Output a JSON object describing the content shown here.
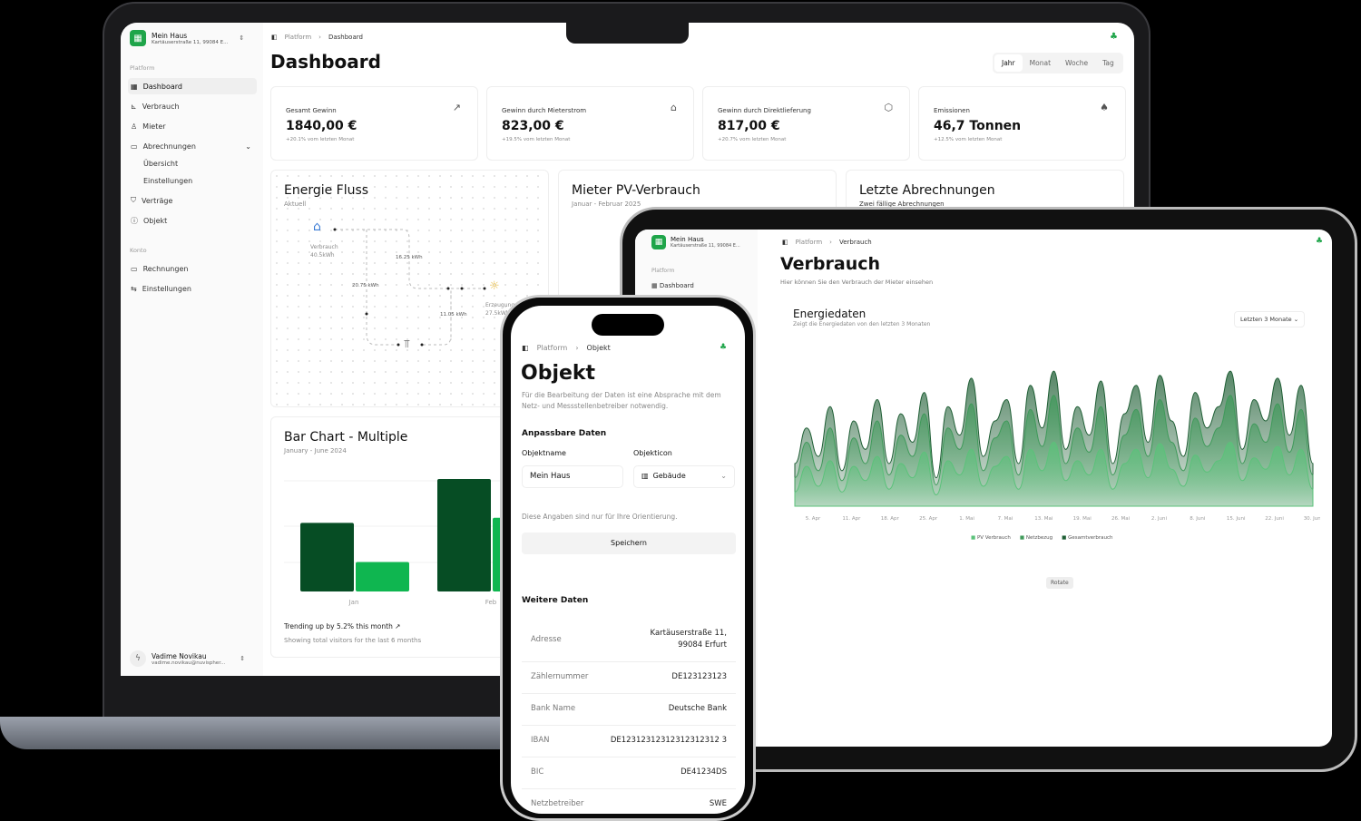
{
  "laptop": {
    "sidebar": {
      "org_name": "Mein Haus",
      "org_address": "Kartäuserstraße 11, 99084 E...",
      "section_platform": "Platform",
      "section_konto": "Konto",
      "items": [
        {
          "label": "Dashboard",
          "icon": "dashboard-icon"
        },
        {
          "label": "Verbrauch",
          "icon": "chart-icon"
        },
        {
          "label": "Mieter",
          "icon": "user-icon"
        },
        {
          "label": "Abrechnungen",
          "icon": "card-icon"
        },
        {
          "label": "Übersicht"
        },
        {
          "label": "Einstellungen"
        },
        {
          "label": "Verträge",
          "icon": "shield-icon"
        },
        {
          "label": "Objekt",
          "icon": "info-icon"
        }
      ],
      "konto_items": [
        {
          "label": "Rechnungen",
          "icon": "card-icon"
        },
        {
          "label": "Einstellungen",
          "icon": "sliders-icon"
        }
      ],
      "user_name": "Vadime Novikau",
      "user_email": "vadime.novikau@nuvispher..."
    },
    "breadcrumb": [
      "Platform",
      "Dashboard"
    ],
    "title": "Dashboard",
    "range_tabs": [
      "Jahr",
      "Monat",
      "Woche",
      "Tag"
    ],
    "active_range": "Jahr",
    "kpis": [
      {
        "label": "Gesamt Gewinn",
        "value": "1840,00 €",
        "sub": "+20.1% vom letzten Monat",
        "icon": "trending-up-icon"
      },
      {
        "label": "Gewinn durch Mieterstrom",
        "value": "823,00 €",
        "sub": "+19.5% vom letzten Monat",
        "icon": "house-icon"
      },
      {
        "label": "Gewinn durch Direktlieferung",
        "value": "817,00 €",
        "sub": "+20.7% vom letzten Monat",
        "icon": "package-icon"
      },
      {
        "label": "Emissionen",
        "value": "46,7 Tonnen",
        "sub": "+12.5% vom letzten Monat",
        "icon": "trees-icon"
      }
    ],
    "energy_flow": {
      "title": "Energie Fluss",
      "sub": "Aktuell",
      "consumption_label": "Verbrauch",
      "consumption_value": "40.5kWh",
      "production_label": "Erzeugung",
      "production_value": "27.5kWh",
      "flow1": "16.25 kWh",
      "flow2": "20.75 kWh",
      "flow3": "11.05 kWh"
    },
    "pv_card": {
      "title": "Mieter PV-Verbrauch",
      "sub": "Januar - Februar 2025"
    },
    "billing_card": {
      "title": "Letzte Abrechnungen",
      "sub": "Zwei fällige Abrechnungen"
    },
    "bar_chart": {
      "title": "Bar Chart - Multiple",
      "sub": "January - June 2024",
      "footer": "Trending up by 5.2% this month",
      "footer_sub": "Showing total visitors for the last 6 months",
      "chart_data": {
        "type": "bar",
        "categories": [
          "Jan",
          "Feb"
        ],
        "series": [
          {
            "values": [
              186,
              305
            ],
            "color": "#064d24"
          },
          {
            "values": [
              80,
              200
            ],
            "color": "#0fb650"
          }
        ]
      }
    }
  },
  "tablet": {
    "org_name": "Mein Haus",
    "org_address": "Kartäuserstraße 11, 99084 E...",
    "section_platform": "Platform",
    "nav_dashboard": "Dashboard",
    "breadcrumb": [
      "Platform",
      "Verbrauch"
    ],
    "title": "Verbrauch",
    "subtitle": "Hier können Sie den Verbrauch der Mieter einsehen",
    "chart_title": "Energiedaten",
    "chart_sub": "Zeigt die Energiedaten von den letzten 3 Monaten",
    "range_select": "Letzten 3 Monate",
    "rotate_button": "Rotate",
    "chart_data": {
      "type": "area",
      "x_ticks": [
        "5. Apr",
        "11. Apr",
        "18. Apr",
        "25. Apr",
        "1. Mai",
        "7. Mai",
        "13. Mai",
        "19. Mai",
        "26. Mai",
        "2. Juni",
        "8. Juni",
        "15. Juni",
        "22. Juni",
        "30. Juni"
      ],
      "series": [
        {
          "name": "Gesamtverbrauch",
          "color": "#1e5e34",
          "values": [
            30,
            55,
            35,
            70,
            25,
            60,
            40,
            75,
            30,
            65,
            45,
            80,
            20,
            70,
            50,
            90,
            35,
            60,
            75,
            30,
            85,
            55,
            95,
            40,
            70,
            50,
            88,
            30,
            65,
            85,
            45,
            92,
            60,
            35,
            80,
            55,
            70,
            95,
            40,
            75,
            60,
            90,
            50,
            85,
            30
          ]
        },
        {
          "name": "Netzbezug",
          "color": "#3f9a5a",
          "values": [
            20,
            45,
            25,
            55,
            18,
            48,
            30,
            60,
            22,
            50,
            35,
            65,
            15,
            55,
            40,
            72,
            25,
            48,
            60,
            22,
            68,
            42,
            78,
            30,
            55,
            38,
            70,
            22,
            50,
            68,
            35,
            75,
            45,
            25,
            62,
            42,
            55,
            78,
            30,
            58,
            45,
            72,
            38,
            68,
            22
          ]
        },
        {
          "name": "PV Verbrauch",
          "color": "#5bc27a",
          "values": [
            10,
            28,
            14,
            32,
            10,
            28,
            18,
            35,
            12,
            30,
            20,
            38,
            8,
            32,
            22,
            40,
            14,
            28,
            35,
            12,
            40,
            25,
            45,
            18,
            32,
            22,
            40,
            12,
            30,
            40,
            20,
            44,
            26,
            14,
            36,
            24,
            32,
            45,
            18,
            34,
            26,
            42,
            22,
            40,
            12
          ]
        }
      ],
      "legend": [
        "PV Verbrauch",
        "Netzbezug",
        "Gesamtverbrauch"
      ],
      "legend_position": "bottom"
    }
  },
  "phone": {
    "breadcrumb": [
      "Platform",
      "Objekt"
    ],
    "title": "Objekt",
    "description": "Für die Bearbeitung der Daten ist eine Absprache mit dem Netz- und Messstellenbetreiber notwendig.",
    "section_editable": "Anpassbare Daten",
    "field_name_label": "Objektname",
    "field_name_value": "Mein Haus",
    "field_icon_label": "Objekticon",
    "field_icon_value": "Gebäude",
    "hint": "Diese Angaben sind nur für Ihre Orientierung.",
    "save_button": "Speichern",
    "section_more": "Weitere Daten",
    "rows": [
      {
        "label": "Adresse",
        "value": "Kartäuserstraße 11, 99084 Erfurt"
      },
      {
        "label": "Zählernummer",
        "value": "DE123123123"
      },
      {
        "label": "Bank Name",
        "value": "Deutsche Bank"
      },
      {
        "label": "IBAN",
        "value": "DE12312312312312312312 3"
      },
      {
        "label": "BIC",
        "value": "DE41234DS"
      },
      {
        "label": "Netzbetreiber",
        "value": "SWE"
      }
    ]
  },
  "colors": {
    "accent": "#1fa54a",
    "bar_dark": "#064d24",
    "bar_light": "#0fb650"
  }
}
